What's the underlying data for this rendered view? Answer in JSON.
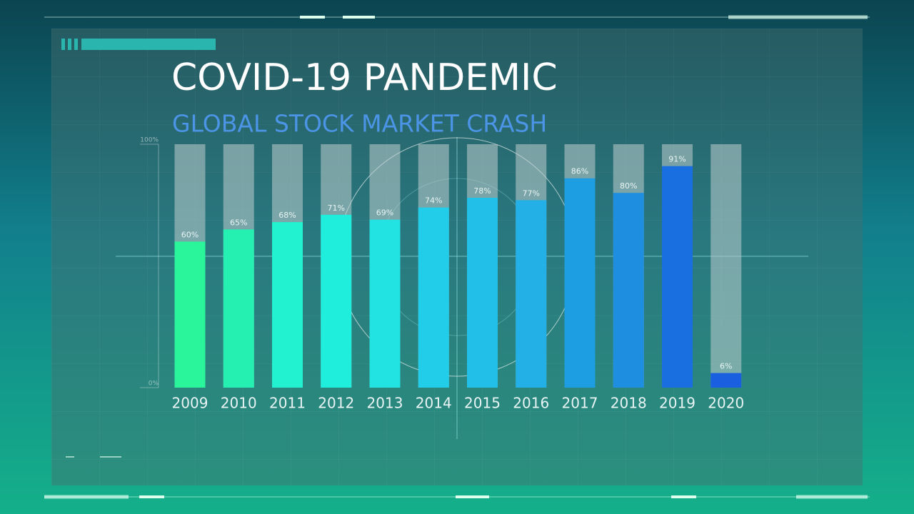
{
  "chart_data": {
    "type": "bar",
    "title": "COVID-19 PANDEMIC",
    "subtitle": "GLOBAL STOCK MARKET CRASH",
    "categories": [
      "2009",
      "2010",
      "2011",
      "2012",
      "2013",
      "2014",
      "2015",
      "2016",
      "2017",
      "2018",
      "2019",
      "2020"
    ],
    "values": [
      60,
      65,
      68,
      71,
      69,
      74,
      78,
      77,
      86,
      80,
      91,
      6
    ],
    "value_labels": [
      "60%",
      "65%",
      "68%",
      "71%",
      "69%",
      "74%",
      "78%",
      "77%",
      "86%",
      "80%",
      "91%",
      "6%"
    ],
    "colors": [
      "#2af59a",
      "#25f0b2",
      "#22f2cf",
      "#20eedc",
      "#22e2e2",
      "#22cde9",
      "#22c0e8",
      "#22b0e6",
      "#1e9ee2",
      "#1e8ee0",
      "#1a6fe0",
      "#1a5fe0"
    ],
    "ylim": [
      0,
      100
    ],
    "yticks": [
      {
        "value": 0,
        "label": "0%"
      },
      {
        "value": 100,
        "label": "100%"
      }
    ]
  }
}
